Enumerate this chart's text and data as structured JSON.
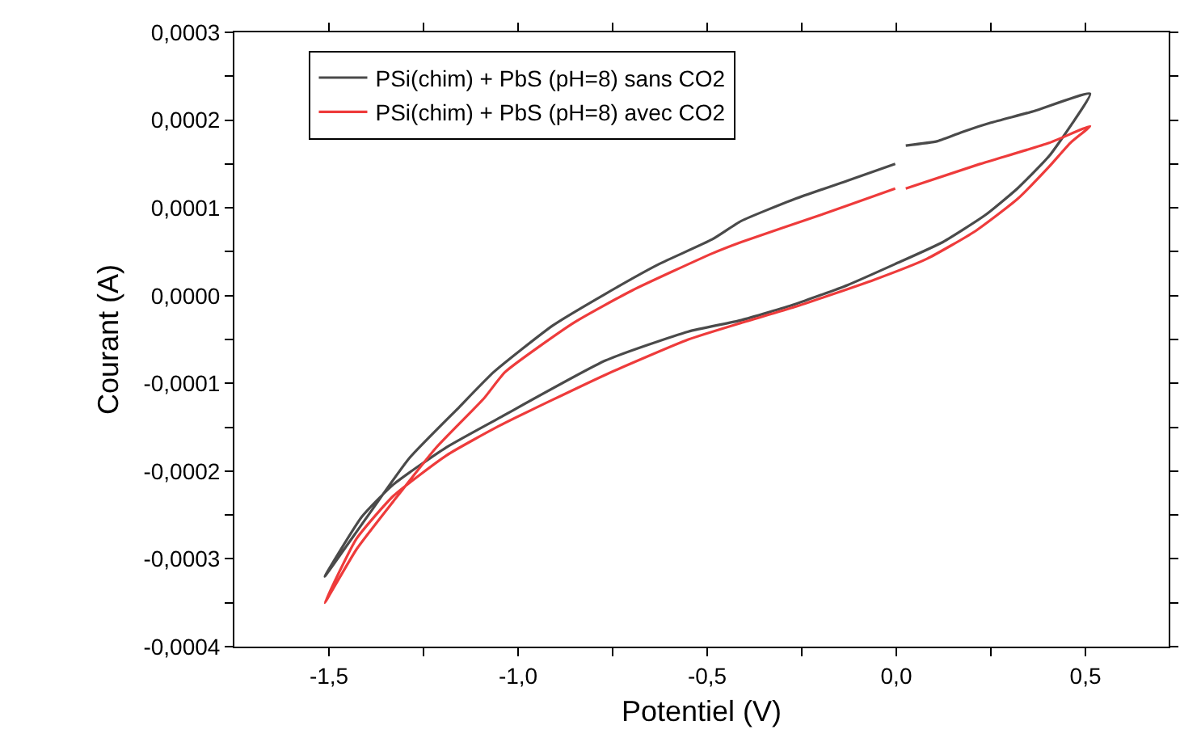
{
  "chart_data": {
    "type": "line",
    "xlabel": "Potentiel (V)",
    "ylabel": "Courant (A)",
    "xlim": [
      -1.75,
      0.72
    ],
    "ylim": [
      -0.0004,
      0.0003
    ],
    "xticks": [
      {
        "value": -1.5,
        "label": "-1,5"
      },
      {
        "value": -1.25,
        "label": null
      },
      {
        "value": -1.0,
        "label": "-1,0"
      },
      {
        "value": -0.75,
        "label": null
      },
      {
        "value": -0.5,
        "label": "-0,5"
      },
      {
        "value": -0.25,
        "label": null
      },
      {
        "value": 0.0,
        "label": "0,0"
      },
      {
        "value": 0.25,
        "label": null
      },
      {
        "value": 0.5,
        "label": "0,5"
      }
    ],
    "yticks": [
      {
        "value": -0.0004,
        "label": "-0,0004"
      },
      {
        "value": -0.00035,
        "label": null
      },
      {
        "value": -0.0003,
        "label": "-0,0003"
      },
      {
        "value": -0.00025,
        "label": null
      },
      {
        "value": -0.0002,
        "label": "-0,0002"
      },
      {
        "value": -0.00015,
        "label": null
      },
      {
        "value": -0.0001,
        "label": "-0,0001"
      },
      {
        "value": -5e-05,
        "label": null
      },
      {
        "value": 0.0,
        "label": "0,0000"
      },
      {
        "value": 5e-05,
        "label": null
      },
      {
        "value": 0.0001,
        "label": "0,0001"
      },
      {
        "value": 0.00015,
        "label": null
      },
      {
        "value": 0.0002,
        "label": "0,0002"
      },
      {
        "value": 0.00025,
        "label": null
      },
      {
        "value": 0.0003,
        "label": "0,0003"
      }
    ],
    "legend": "top left",
    "marker": "none",
    "line_style": "solid",
    "series": [
      {
        "name": "PSi(chim) + PbS (pH=8) sans CO2",
        "color": "#4a4a4a",
        "x": [
          0.025,
          0.109,
          0.178,
          0.25,
          0.362,
          0.512,
          0.46,
          0.404,
          0.32,
          0.236,
          0.123,
          -0.003,
          -0.129,
          -0.269,
          -0.41,
          -0.55,
          -0.769,
          -1.048,
          -1.19,
          -1.329,
          -1.413,
          -1.511,
          -1.399,
          -1.287,
          -1.16,
          -1.064,
          -0.908,
          -0.769,
          -0.627,
          -0.487,
          -0.41,
          -0.269,
          -0.129,
          -0.003
        ],
        "values": [
          0.000171,
          0.000176,
          0.000187,
          0.000197,
          0.00021,
          0.00023,
          0.000193,
          0.000159,
          0.000122,
          9.2e-05,
          6.1e-05,
          3.6e-05,
          1.2e-05,
          -1e-05,
          -2.8e-05,
          -4.1e-05,
          -7.4e-05,
          -0.000139,
          -0.000173,
          -0.000215,
          -0.000252,
          -0.00032,
          -0.000252,
          -0.000185,
          -0.000129,
          -8.7e-05,
          -3.4e-05,
          2e-06,
          3.6e-05,
          6.4e-05,
          8.5e-05,
          0.00011,
          0.000131,
          0.00015
        ]
      },
      {
        "name": "PSi(chim) + PbS (pH=8) avec CO2",
        "color": "#ee3b3b",
        "x": [
          0.025,
          0.221,
          0.404,
          0.512,
          0.46,
          0.404,
          0.32,
          0.207,
          0.081,
          -0.059,
          -0.269,
          -0.41,
          -0.55,
          -0.768,
          -1.048,
          -1.189,
          -1.329,
          -1.427,
          -1.511,
          -1.427,
          -1.329,
          -1.216,
          -1.09,
          -1.034,
          -0.853,
          -0.698,
          -0.487,
          -0.41,
          -0.199,
          -0.003
        ],
        "values": [
          0.000122,
          0.00015,
          0.000174,
          0.000193,
          0.000174,
          0.000147,
          0.00011,
          7.3e-05,
          4.2e-05,
          1.8e-05,
          -1.3e-05,
          -3.1e-05,
          -5e-05,
          -9e-05,
          -0.000148,
          -0.000182,
          -0.000228,
          -0.000277,
          -0.00035,
          -0.000289,
          -0.000234,
          -0.000173,
          -0.000117,
          -8.7e-05,
          -3.1e-05,
          6e-06,
          4.8e-05,
          6.1e-05,
          9.2e-05,
          0.000122
        ]
      }
    ]
  }
}
